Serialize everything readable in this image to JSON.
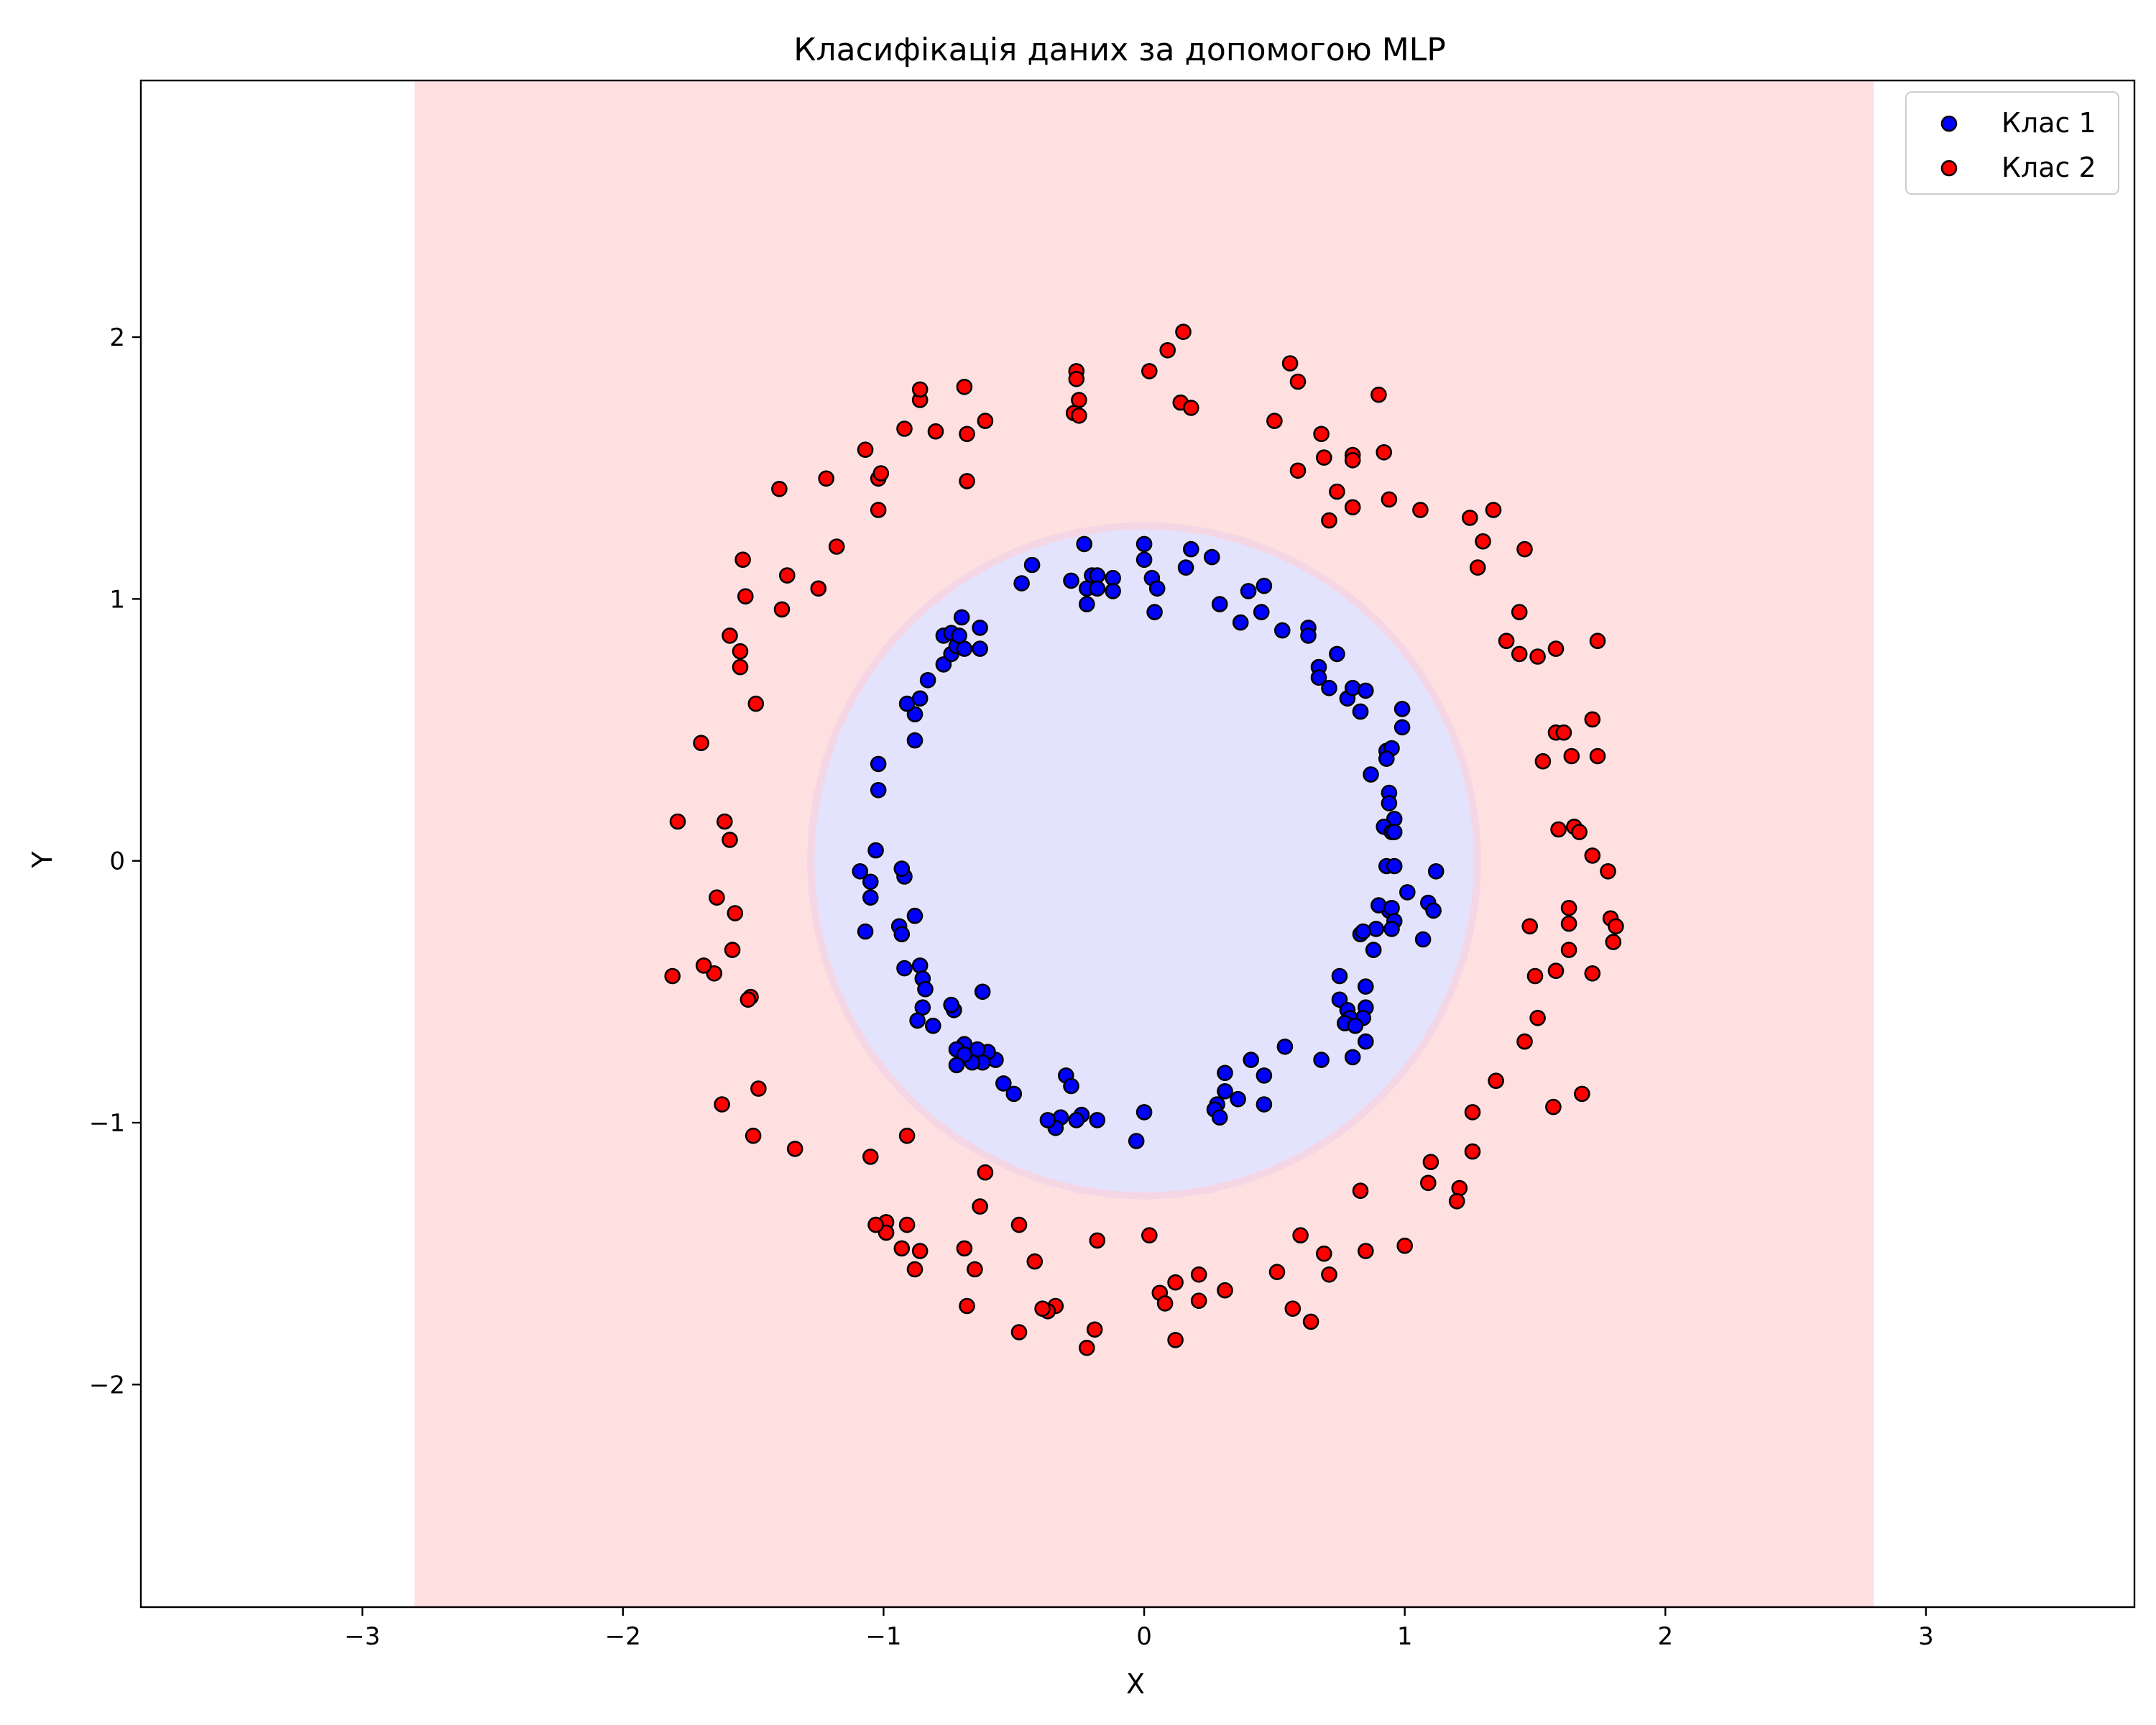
{
  "chart_data": {
    "type": "scatter",
    "title": "Класифікація даних за допомогою MLP",
    "xlabel": "X",
    "ylabel": "Y",
    "xlim": [
      -3.85,
      3.8
    ],
    "ylim": [
      -2.85,
      2.98
    ],
    "xticks": [
      -3,
      -2,
      -1,
      0,
      1,
      2,
      3
    ],
    "yticks": [
      -2,
      -1,
      0,
      1,
      2
    ],
    "xtick_labels": [
      "−3",
      "−2",
      "−1",
      "0",
      "1",
      "2",
      "3"
    ],
    "ytick_labels": [
      "−2",
      "−1",
      "0",
      "1",
      "2"
    ],
    "grid": false,
    "legend_position": "top-right",
    "background": {
      "outer_region": {
        "x_range": [
          -2.8,
          2.8
        ],
        "y_range": [
          -2.85,
          2.98
        ],
        "class": "Клас 2",
        "color": "#ffe0e1"
      },
      "inner_region": {
        "class": "Клас 1",
        "color": "#e3e3fd",
        "approx_radius": 1.28
      }
    },
    "series": [
      {
        "name": "Клас 1",
        "color": "#0000ff",
        "points": [
          [
            -0.23,
            1.21
          ],
          [
            0.0,
            1.21
          ],
          [
            0.18,
            1.19
          ],
          [
            0.16,
            1.12
          ],
          [
            0.26,
            1.16
          ],
          [
            -0.43,
            1.13
          ],
          [
            -0.47,
            1.06
          ],
          [
            -0.28,
            1.07
          ],
          [
            -0.2,
            1.09
          ],
          [
            -0.18,
            1.09
          ],
          [
            -0.12,
            1.08
          ],
          [
            -0.22,
            1.04
          ],
          [
            -0.18,
            1.04
          ],
          [
            -0.12,
            1.03
          ],
          [
            -0.22,
            0.98
          ],
          [
            0.03,
            1.08
          ],
          [
            0.05,
            1.04
          ],
          [
            0.0,
            1.15
          ],
          [
            0.04,
            0.95
          ],
          [
            0.29,
            0.98
          ],
          [
            0.4,
            1.03
          ],
          [
            0.46,
            1.05
          ],
          [
            0.45,
            0.95
          ],
          [
            0.37,
            0.91
          ],
          [
            0.53,
            0.88
          ],
          [
            0.63,
            0.89
          ],
          [
            0.63,
            0.86
          ],
          [
            0.67,
            0.74
          ],
          [
            0.67,
            0.7
          ],
          [
            0.74,
            0.79
          ],
          [
            0.71,
            0.66
          ],
          [
            0.78,
            0.62
          ],
          [
            0.8,
            0.66
          ],
          [
            0.85,
            0.65
          ],
          [
            0.83,
            0.57
          ],
          [
            0.83,
            0.57
          ],
          [
            0.99,
            0.58
          ],
          [
            0.99,
            0.51
          ],
          [
            0.93,
            0.42
          ],
          [
            0.95,
            0.43
          ],
          [
            0.93,
            0.39
          ],
          [
            0.87,
            0.33
          ],
          [
            0.94,
            0.26
          ],
          [
            0.94,
            0.22
          ],
          [
            0.96,
            0.16
          ],
          [
            0.92,
            0.13
          ],
          [
            0.95,
            0.11
          ],
          [
            0.96,
            0.11
          ],
          [
            1.12,
            -0.04
          ],
          [
            0.93,
            -0.02
          ],
          [
            0.96,
            -0.02
          ],
          [
            1.01,
            -0.12
          ],
          [
            0.94,
            -0.19
          ],
          [
            0.9,
            -0.17
          ],
          [
            0.95,
            -0.18
          ],
          [
            0.96,
            -0.23
          ],
          [
            0.95,
            -0.26
          ],
          [
            1.09,
            -0.16
          ],
          [
            1.11,
            -0.19
          ],
          [
            0.89,
            -0.26
          ],
          [
            0.83,
            -0.28
          ],
          [
            0.84,
            -0.27
          ],
          [
            0.88,
            -0.34
          ],
          [
            1.07,
            -0.3
          ],
          [
            0.75,
            -0.44
          ],
          [
            0.85,
            -0.48
          ],
          [
            0.75,
            -0.53
          ],
          [
            0.85,
            -0.56
          ],
          [
            0.78,
            -0.57
          ],
          [
            0.84,
            -0.6
          ],
          [
            0.79,
            -0.6
          ],
          [
            0.77,
            -0.62
          ],
          [
            0.81,
            -0.63
          ],
          [
            0.85,
            -0.69
          ],
          [
            0.8,
            -0.75
          ],
          [
            0.68,
            -0.76
          ],
          [
            0.54,
            -0.71
          ],
          [
            0.41,
            -0.76
          ],
          [
            0.46,
            -0.82
          ],
          [
            0.46,
            -0.93
          ],
          [
            0.31,
            -0.81
          ],
          [
            0.31,
            -0.88
          ],
          [
            0.36,
            -0.91
          ],
          [
            0.28,
            -0.93
          ],
          [
            0.27,
            -0.95
          ],
          [
            0.29,
            -0.98
          ],
          [
            0.0,
            -0.96
          ],
          [
            -0.03,
            -1.07
          ],
          [
            -0.18,
            -0.99
          ],
          [
            -0.24,
            -0.97
          ],
          [
            -0.26,
            -0.99
          ],
          [
            -0.32,
            -0.98
          ],
          [
            -0.34,
            -1.02
          ],
          [
            -0.37,
            -0.99
          ],
          [
            -0.3,
            -0.82
          ],
          [
            -0.28,
            -0.86
          ],
          [
            -0.5,
            -0.89
          ],
          [
            -0.54,
            -0.85
          ],
          [
            -0.57,
            -0.76
          ],
          [
            -0.6,
            -0.73
          ],
          [
            -0.62,
            -0.77
          ],
          [
            -0.64,
            -0.72
          ],
          [
            -0.66,
            -0.77
          ],
          [
            -0.69,
            -0.7
          ],
          [
            -0.72,
            -0.72
          ],
          [
            -0.69,
            -0.74
          ],
          [
            -0.72,
            -0.78
          ],
          [
            -0.73,
            -0.57
          ],
          [
            -0.74,
            -0.55
          ],
          [
            -0.62,
            -0.5
          ],
          [
            -0.81,
            -0.63
          ],
          [
            -0.85,
            -0.56
          ],
          [
            -0.87,
            -0.61
          ],
          [
            -0.86,
            -0.4
          ],
          [
            -0.85,
            -0.45
          ],
          [
            -0.84,
            -0.49
          ],
          [
            -0.92,
            -0.41
          ],
          [
            -0.88,
            -0.21
          ],
          [
            -0.94,
            -0.25
          ],
          [
            -0.93,
            -0.28
          ],
          [
            -0.92,
            -0.06
          ],
          [
            -0.93,
            -0.03
          ],
          [
            -1.09,
            -0.04
          ],
          [
            -1.05,
            -0.08
          ],
          [
            -1.05,
            -0.14
          ],
          [
            -1.07,
            -0.27
          ],
          [
            -1.03,
            0.04
          ],
          [
            -1.02,
            0.27
          ],
          [
            -1.02,
            0.37
          ],
          [
            -0.88,
            0.46
          ],
          [
            -0.88,
            0.56
          ],
          [
            -0.91,
            0.6
          ],
          [
            -0.86,
            0.62
          ],
          [
            -0.83,
            0.69
          ],
          [
            -0.77,
            0.75
          ],
          [
            -0.74,
            0.79
          ],
          [
            -0.72,
            0.82
          ],
          [
            -0.69,
            0.81
          ],
          [
            -0.77,
            0.86
          ],
          [
            -0.74,
            0.87
          ],
          [
            -0.71,
            0.86
          ],
          [
            -0.7,
            0.93
          ],
          [
            -0.63,
            0.89
          ],
          [
            -0.63,
            0.81
          ]
        ]
      },
      {
        "name": "Клас 2",
        "color": "#ff0000",
        "points": [
          [
            0.15,
            2.02
          ],
          [
            0.09,
            1.95
          ],
          [
            0.02,
            1.87
          ],
          [
            -0.26,
            1.87
          ],
          [
            -0.26,
            1.84
          ],
          [
            -0.25,
            1.76
          ],
          [
            -0.27,
            1.71
          ],
          [
            -0.25,
            1.7
          ],
          [
            0.14,
            1.75
          ],
          [
            0.18,
            1.73
          ],
          [
            0.56,
            1.9
          ],
          [
            0.59,
            1.83
          ],
          [
            0.9,
            1.78
          ],
          [
            0.5,
            1.68
          ],
          [
            0.68,
            1.63
          ],
          [
            0.69,
            1.54
          ],
          [
            0.8,
            1.55
          ],
          [
            0.8,
            1.53
          ],
          [
            0.92,
            1.56
          ],
          [
            0.59,
            1.49
          ],
          [
            0.74,
            1.41
          ],
          [
            0.94,
            1.38
          ],
          [
            0.8,
            1.35
          ],
          [
            0.71,
            1.3
          ],
          [
            1.06,
            1.34
          ],
          [
            1.25,
            1.31
          ],
          [
            1.34,
            1.34
          ],
          [
            1.3,
            1.22
          ],
          [
            1.28,
            1.12
          ],
          [
            1.46,
            1.19
          ],
          [
            1.44,
            0.95
          ],
          [
            1.39,
            0.84
          ],
          [
            1.44,
            0.79
          ],
          [
            1.51,
            0.78
          ],
          [
            1.58,
            0.81
          ],
          [
            1.74,
            0.84
          ],
          [
            1.58,
            0.49
          ],
          [
            1.61,
            0.49
          ],
          [
            1.72,
            0.54
          ],
          [
            1.53,
            0.38
          ],
          [
            1.64,
            0.4
          ],
          [
            1.74,
            0.4
          ],
          [
            1.59,
            0.12
          ],
          [
            1.65,
            0.13
          ],
          [
            1.67,
            0.11
          ],
          [
            1.72,
            0.02
          ],
          [
            1.78,
            -0.04
          ],
          [
            1.63,
            -0.18
          ],
          [
            1.63,
            -0.24
          ],
          [
            1.48,
            -0.25
          ],
          [
            1.79,
            -0.22
          ],
          [
            1.81,
            -0.25
          ],
          [
            1.8,
            -0.31
          ],
          [
            1.63,
            -0.34
          ],
          [
            1.58,
            -0.42
          ],
          [
            1.5,
            -0.44
          ],
          [
            1.72,
            -0.43
          ],
          [
            1.51,
            -0.6
          ],
          [
            1.46,
            -0.69
          ],
          [
            1.35,
            -0.84
          ],
          [
            1.68,
            -0.89
          ],
          [
            1.57,
            -0.94
          ],
          [
            1.26,
            -0.96
          ],
          [
            1.26,
            -1.11
          ],
          [
            1.1,
            -1.15
          ],
          [
            1.09,
            -1.23
          ],
          [
            1.21,
            -1.25
          ],
          [
            1.2,
            -1.3
          ],
          [
            1.0,
            -1.47
          ],
          [
            0.83,
            -1.26
          ],
          [
            0.6,
            -1.43
          ],
          [
            0.69,
            -1.5
          ],
          [
            0.71,
            -1.58
          ],
          [
            0.85,
            -1.49
          ],
          [
            0.51,
            -1.57
          ],
          [
            0.57,
            -1.71
          ],
          [
            0.64,
            -1.76
          ],
          [
            0.31,
            -1.64
          ],
          [
            0.21,
            -1.58
          ],
          [
            0.21,
            -1.68
          ],
          [
            0.12,
            -1.61
          ],
          [
            0.06,
            -1.65
          ],
          [
            0.08,
            -1.69
          ],
          [
            0.12,
            -1.83
          ],
          [
            0.02,
            -1.43
          ],
          [
            -0.18,
            -1.45
          ],
          [
            -0.19,
            -1.79
          ],
          [
            -0.22,
            -1.86
          ],
          [
            -0.34,
            -1.7
          ],
          [
            -0.37,
            -1.72
          ],
          [
            -0.39,
            -1.71
          ],
          [
            -0.48,
            -1.8
          ],
          [
            -0.42,
            -1.53
          ],
          [
            -0.48,
            -1.39
          ],
          [
            -0.61,
            -1.19
          ],
          [
            -0.63,
            -1.32
          ],
          [
            -0.65,
            -1.56
          ],
          [
            -0.69,
            -1.48
          ],
          [
            -0.68,
            -1.7
          ],
          [
            -0.91,
            -1.05
          ],
          [
            -0.91,
            -1.39
          ],
          [
            -0.93,
            -1.48
          ],
          [
            -0.86,
            -1.49
          ],
          [
            -0.88,
            -1.56
          ],
          [
            -0.99,
            -1.38
          ],
          [
            -0.99,
            -1.42
          ],
          [
            -1.03,
            -1.39
          ],
          [
            -1.05,
            -1.13
          ],
          [
            -1.34,
            -1.1
          ],
          [
            -1.5,
            -1.05
          ],
          [
            -1.48,
            -0.87
          ],
          [
            -1.62,
            -0.93
          ],
          [
            -1.51,
            -0.52
          ],
          [
            -1.52,
            -0.53
          ],
          [
            -1.65,
            -0.43
          ],
          [
            -1.69,
            -0.4
          ],
          [
            -1.81,
            -0.44
          ],
          [
            -1.58,
            -0.34
          ],
          [
            -1.57,
            -0.2
          ],
          [
            -1.64,
            -0.14
          ],
          [
            -1.59,
            0.08
          ],
          [
            -1.61,
            0.15
          ],
          [
            -1.79,
            0.15
          ],
          [
            -1.7,
            0.45
          ],
          [
            -1.49,
            0.6
          ],
          [
            -1.55,
            0.74
          ],
          [
            -1.55,
            0.8
          ],
          [
            -1.59,
            0.86
          ],
          [
            -1.39,
            0.96
          ],
          [
            -1.53,
            1.01
          ],
          [
            -1.37,
            1.09
          ],
          [
            -1.25,
            1.04
          ],
          [
            -1.18,
            1.2
          ],
          [
            -1.54,
            1.15
          ],
          [
            -1.4,
            1.42
          ],
          [
            -1.22,
            1.46
          ],
          [
            -1.02,
            1.46
          ],
          [
            -1.01,
            1.48
          ],
          [
            -1.02,
            1.34
          ],
          [
            -1.07,
            1.57
          ],
          [
            -0.92,
            1.65
          ],
          [
            -0.8,
            1.64
          ],
          [
            -0.68,
            1.63
          ],
          [
            -0.68,
            1.45
          ],
          [
            -0.61,
            1.68
          ],
          [
            -0.86,
            1.76
          ],
          [
            -0.86,
            1.8
          ],
          [
            -0.69,
            1.81
          ]
        ]
      }
    ]
  }
}
